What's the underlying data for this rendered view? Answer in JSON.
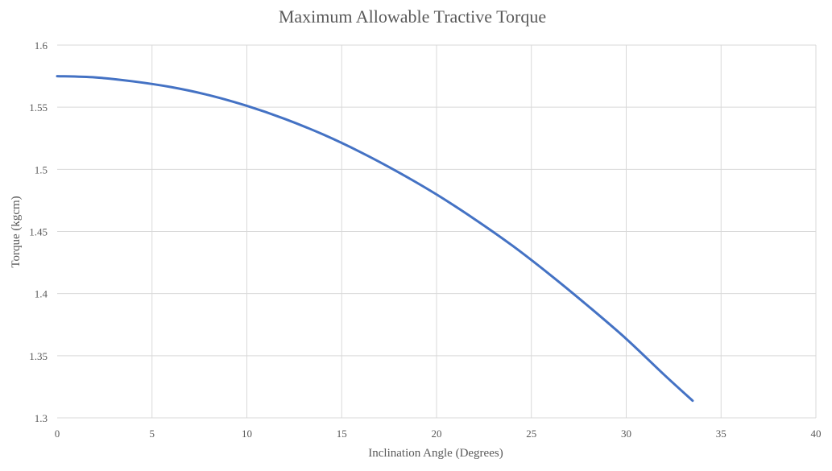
{
  "chart_data": {
    "type": "line",
    "title": "Maximum Allowable Tractive Torque",
    "xlabel": "Inclination Angle (Degrees)",
    "ylabel": "Torque (kgcm)",
    "xlim": [
      0,
      40
    ],
    "ylim": [
      1.3,
      1.6
    ],
    "x_ticks": [
      "0",
      "5",
      "10",
      "15",
      "20",
      "25",
      "30",
      "35",
      "40"
    ],
    "y_ticks": [
      "1.3",
      "1.35",
      "1.4",
      "1.45",
      "1.5",
      "1.55",
      "1.6"
    ],
    "grid": true,
    "legend": "none",
    "series": [
      {
        "color": "#4472c4",
        "x": [
          0,
          2,
          4,
          6,
          8,
          10,
          12,
          14,
          16,
          18,
          20,
          22,
          24,
          26,
          28,
          30,
          32,
          33.5
        ],
        "y": [
          1.575,
          1.574,
          1.5708,
          1.5662,
          1.5597,
          1.5511,
          1.5406,
          1.5282,
          1.5138,
          1.4976,
          1.4798,
          1.46,
          1.4386,
          1.415,
          1.3899,
          1.3636,
          1.3347,
          1.3138
        ]
      }
    ]
  }
}
